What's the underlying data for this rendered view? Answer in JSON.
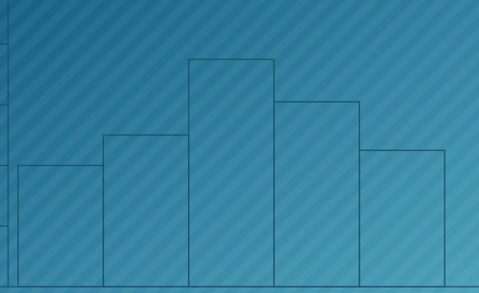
{
  "chart_data": {
    "type": "bar",
    "categories": [
      "",
      "",
      "",
      "",
      ""
    ],
    "values": [
      2.0,
      2.5,
      3.75,
      3.05,
      2.25
    ],
    "title": "",
    "xlabel": "",
    "ylabel": "",
    "ylim": [
      0,
      4.55
    ],
    "grid": false,
    "legend": "none",
    "y_ticks": [
      0,
      1,
      2,
      3,
      4
    ]
  },
  "colors": {
    "background_start": "#166186",
    "background_end": "#4b9fb9",
    "stripe": "#ffffff",
    "bar_stroke": "#1a4f69",
    "axis": "#1a4f69"
  }
}
